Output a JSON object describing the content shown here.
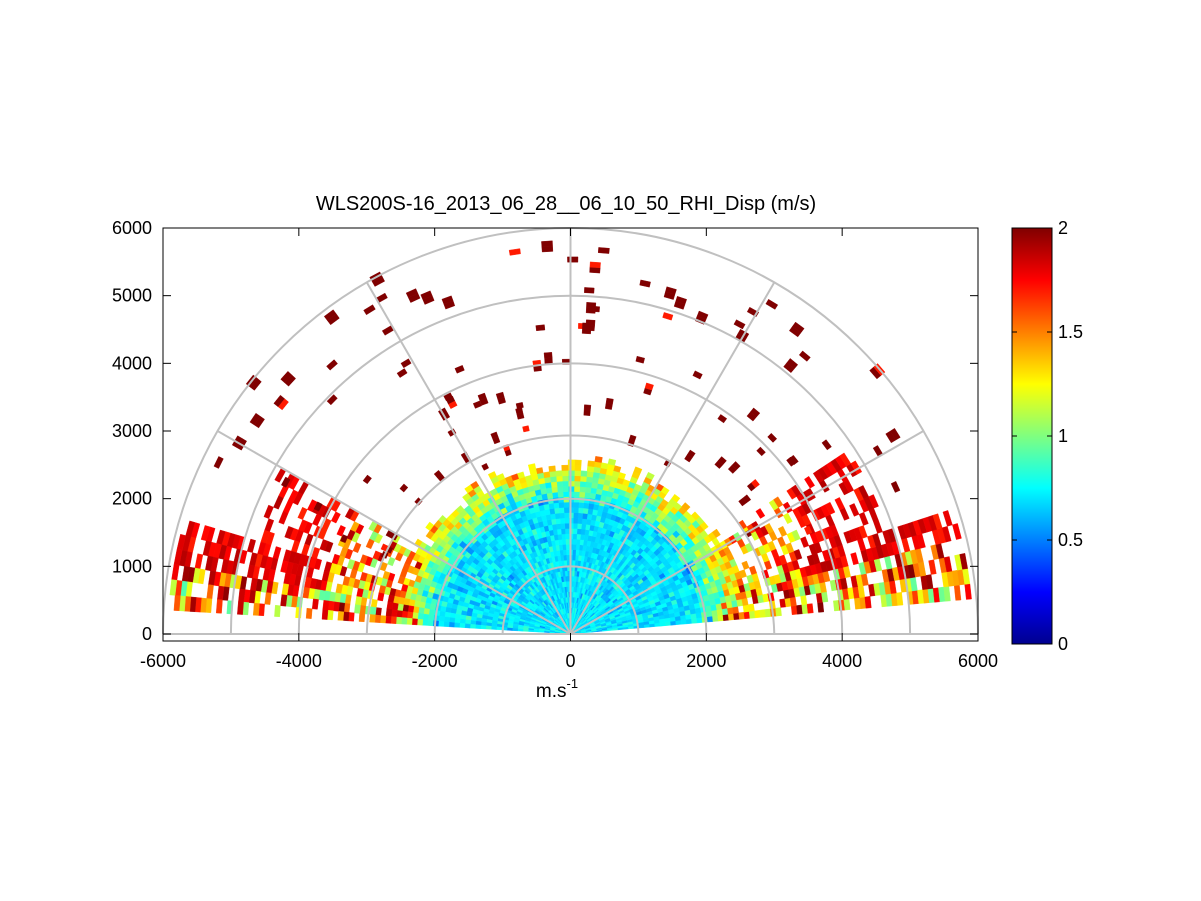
{
  "chart_data": {
    "type": "heatmap",
    "subtype": "polar-rhi-half-disc",
    "title": "WLS200S-16_2013_06_28__06_10_50_RHI_Disp (m/s)",
    "xlabel": "m.s",
    "xlabel_superscript": "-1",
    "ylabel": "",
    "xlim": [
      -6000,
      6000
    ],
    "ylim": [
      0,
      6000
    ],
    "xticks": [
      -6000,
      -4000,
      -2000,
      0,
      2000,
      4000,
      6000
    ],
    "xtick_labels": [
      "-6000",
      "-4000",
      "-2000",
      "0",
      "2000",
      "4000",
      "6000"
    ],
    "yticks": [
      0,
      1000,
      2000,
      3000,
      4000,
      5000,
      6000
    ],
    "ytick_labels": [
      "0",
      "1000",
      "2000",
      "3000",
      "4000",
      "5000",
      "6000"
    ],
    "polar_grid": {
      "range_rings": [
        1000,
        2000,
        3000,
        4000,
        5000,
        6000
      ],
      "spokes_deg": [
        0,
        30,
        60,
        90,
        120,
        150,
        180
      ]
    },
    "colorbar": {
      "colormap": "jet",
      "range": [
        0,
        2
      ],
      "ticks": [
        0,
        0.5,
        1,
        1.5,
        2
      ],
      "tick_labels": [
        "0",
        "0.5",
        "1",
        "1.5",
        "2"
      ]
    },
    "data_description": {
      "elevation_range_deg": [
        5,
        175
      ],
      "dense_region_max_range_m": 2600,
      "typical_value_inner_region": 0.7,
      "typical_value_ring_2000_2600m": 1.4,
      "typical_value_low_elevation_far_range": 1.9,
      "sparse_outer_returns_value": 2.0,
      "sparse_outer_range_m": [
        2600,
        5900
      ]
    }
  }
}
